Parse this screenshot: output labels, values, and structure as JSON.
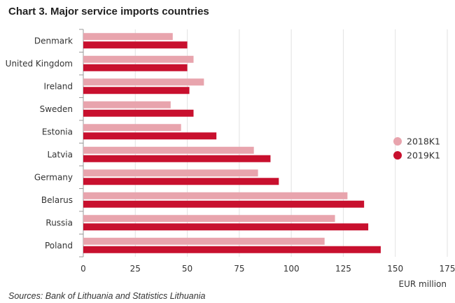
{
  "page": {
    "title": "Chart 3. Major service imports countries",
    "source": "Sources: Bank of Lithuania and Statistics Lithuania"
  },
  "chart_data": {
    "type": "bar",
    "orientation": "horizontal",
    "title": "Chart 3. Major service imports countries",
    "xlabel": "EUR million",
    "ylabel": "",
    "xlim": [
      0,
      175
    ],
    "xticks": [
      0,
      25,
      50,
      75,
      100,
      125,
      150,
      175
    ],
    "grid": true,
    "legend_position": "right",
    "categories": [
      "Denmark",
      "United Kingdom",
      "Ireland",
      "Sweden",
      "Estonia",
      "Latvia",
      "Germany",
      "Belarus",
      "Russia",
      "Poland"
    ],
    "series": [
      {
        "name": "2018K1",
        "color": "#e8a4ad",
        "values": [
          43,
          53,
          58,
          42,
          47,
          82,
          84,
          127,
          121,
          116
        ]
      },
      {
        "name": "2019K1",
        "color": "#c8102e",
        "values": [
          50,
          50,
          51,
          53,
          64,
          90,
          94,
          135,
          137,
          143
        ]
      }
    ]
  }
}
